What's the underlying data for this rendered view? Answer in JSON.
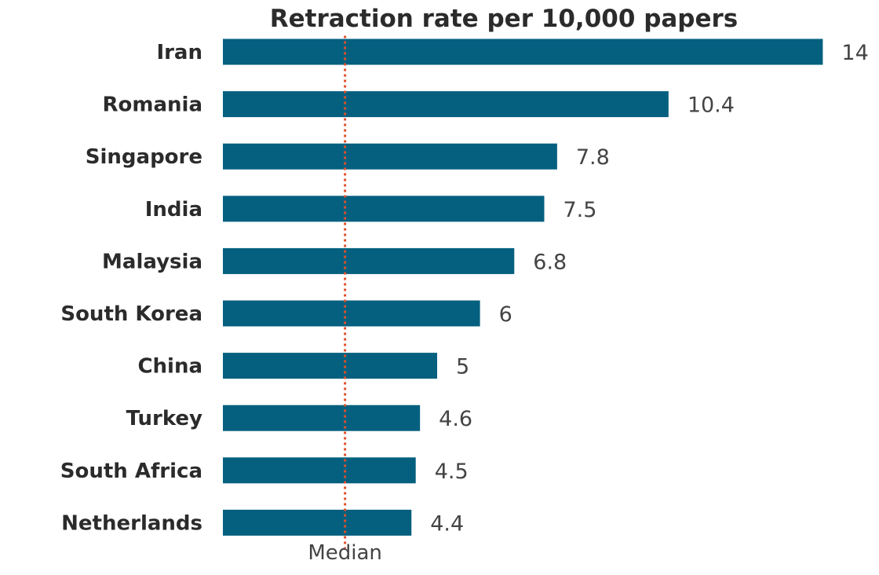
{
  "chart_data": {
    "type": "bar",
    "orientation": "horizontal",
    "title": "Retraction rate per 10,000 papers",
    "xlabel": "",
    "ylabel": "",
    "categories": [
      "Iran",
      "Romania",
      "Singapore",
      "India",
      "Malaysia",
      "South Korea",
      "China",
      "Turkey",
      "South Africa",
      "Netherlands"
    ],
    "values": [
      14,
      10.4,
      7.8,
      7.5,
      6.8,
      6,
      5,
      4.6,
      4.5,
      4.4
    ],
    "value_labels": [
      "14",
      "10.4",
      "7.8",
      "7.5",
      "6.8",
      "6",
      "5",
      "4.6",
      "4.5",
      "4.4"
    ],
    "xlim": [
      0,
      14
    ],
    "grid": false,
    "legend": "none",
    "bar_color": "#05607f",
    "reference_line": {
      "label": "Median",
      "value": 2.85,
      "style": "dotted",
      "color": "#e0502a"
    }
  }
}
